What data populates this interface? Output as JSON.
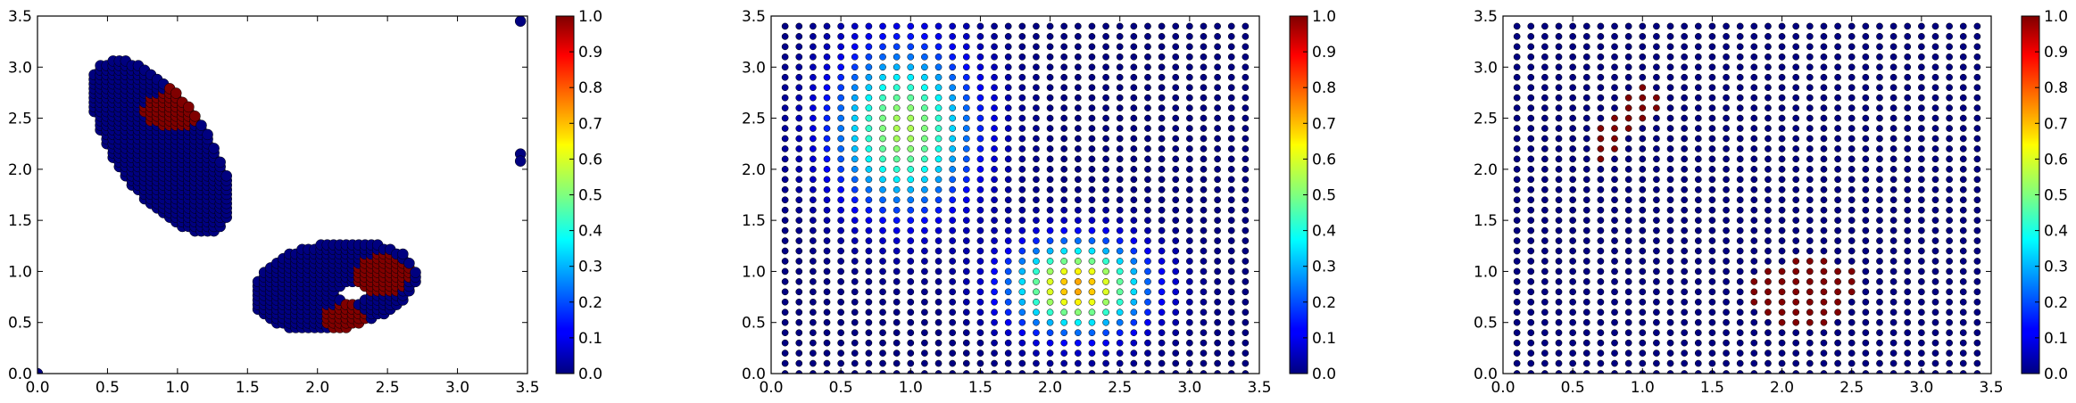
{
  "figure": {
    "colormap": "jet",
    "point_edge_color": "#000000"
  },
  "chart_data": [
    {
      "type": "scatter",
      "name": "panel-1",
      "xlim": [
        0.0,
        3.5
      ],
      "ylim": [
        0.0,
        3.5
      ],
      "xticks": [
        "0.0",
        "0.5",
        "1.0",
        "1.5",
        "2.0",
        "2.5",
        "3.0",
        "3.5"
      ],
      "yticks": [
        "0.0",
        "0.5",
        "1.0",
        "1.5",
        "2.0",
        "2.5",
        "3.0",
        "3.5"
      ],
      "colorbar": {
        "range": [
          0.0,
          1.0
        ],
        "ticks": [
          "0.0",
          "0.1",
          "0.2",
          "0.3",
          "0.4",
          "0.5",
          "0.6",
          "0.7",
          "0.8",
          "0.9",
          "1.0"
        ]
      },
      "grid": false,
      "description_of_points": "dense clusters: blob from (0.4,1.3) to (1.4,3.15) with red core near (1.05,2.6); ring-shaped blob from (1.5,0.35) to (2.7,1.35) with red patches near (2.45,0.95) and (2.2,0.55) and hole near (2.25,0.8); isolated points at (3.45,3.45), (3.45,2.12), (0,0)",
      "regions": [
        {
          "shape": "ellipse",
          "cx": 0.88,
          "cy": 2.22,
          "rx": 0.36,
          "ry": 0.92,
          "angle_deg": 24,
          "value": 0.0
        },
        {
          "shape": "ellipse",
          "cx": 1.05,
          "cy": 2.62,
          "rx": 0.3,
          "ry": 0.2,
          "angle_deg": 15,
          "value": 1.0
        },
        {
          "shape": "ellipse",
          "cx": 2.12,
          "cy": 0.86,
          "rx": 0.6,
          "ry": 0.42,
          "angle_deg": 18,
          "value": 0.0
        },
        {
          "shape": "ellipse",
          "cx": 2.47,
          "cy": 0.98,
          "rx": 0.2,
          "ry": 0.2,
          "angle_deg": 0,
          "value": 1.0
        },
        {
          "shape": "ellipse",
          "cx": 2.2,
          "cy": 0.55,
          "rx": 0.16,
          "ry": 0.14,
          "angle_deg": 0,
          "value": 1.0
        }
      ],
      "holes": [
        {
          "cx": 2.25,
          "cy": 0.8,
          "rx": 0.1,
          "ry": 0.1
        }
      ],
      "isolated_points": [
        {
          "x": 3.45,
          "y": 3.45,
          "value": 0.0
        },
        {
          "x": 3.45,
          "y": 2.15,
          "value": 0.0
        },
        {
          "x": 3.45,
          "y": 2.08,
          "value": 0.0
        },
        {
          "x": 0.0,
          "y": 0.0,
          "value": 0.0
        }
      ]
    },
    {
      "type": "scatter",
      "name": "panel-2",
      "xlim": [
        0.0,
        3.5
      ],
      "ylim": [
        0.0,
        3.5
      ],
      "xticks": [
        "0.0",
        "0.5",
        "1.0",
        "1.5",
        "2.0",
        "2.5",
        "3.0",
        "3.5"
      ],
      "yticks": [
        "0.0",
        "0.5",
        "1.0",
        "1.5",
        "2.0",
        "2.5",
        "3.0",
        "3.5"
      ],
      "colorbar": {
        "range": [
          0.0,
          1.0
        ],
        "ticks": [
          "0.0",
          "0.1",
          "0.2",
          "0.3",
          "0.4",
          "0.5",
          "0.6",
          "0.7",
          "0.8",
          "0.9",
          "1.0"
        ]
      },
      "grid": false,
      "grid_points": {
        "x_start": 0.1,
        "x_step": 0.1,
        "x_count": 34,
        "y_start": 0.0,
        "y_step": 0.1,
        "y_count": 35
      },
      "field": {
        "kind": "sum_of_gaussians",
        "components": [
          {
            "cx": 0.95,
            "cy": 2.4,
            "sx": 0.35,
            "sy": 0.55,
            "amp": 0.55
          },
          {
            "cx": 2.2,
            "cy": 0.85,
            "sx": 0.33,
            "sy": 0.3,
            "amp": 0.72
          }
        ]
      }
    },
    {
      "type": "scatter",
      "name": "panel-3",
      "xlim": [
        0.0,
        3.5
      ],
      "ylim": [
        0.0,
        3.5
      ],
      "xticks": [
        "0.0",
        "0.5",
        "1.0",
        "1.5",
        "2.0",
        "2.5",
        "3.0",
        "3.5"
      ],
      "yticks": [
        "0.0",
        "0.5",
        "1.0",
        "1.5",
        "2.0",
        "2.5",
        "3.0",
        "3.5"
      ],
      "colorbar": {
        "range": [
          0.0,
          1.0
        ],
        "ticks": [
          "0.0",
          "0.1",
          "0.2",
          "0.3",
          "0.4",
          "0.5",
          "0.6",
          "0.7",
          "0.8",
          "0.9",
          "1.0"
        ]
      },
      "grid": false,
      "grid_points": {
        "x_start": 0.1,
        "x_step": 0.1,
        "x_count": 34,
        "y_start": 0.0,
        "y_step": 0.1,
        "y_count": 35
      },
      "high_value_points": [
        [
          1.0,
          2.8
        ],
        [
          0.9,
          2.7
        ],
        [
          1.0,
          2.7
        ],
        [
          1.1,
          2.7
        ],
        [
          0.9,
          2.6
        ],
        [
          1.0,
          2.6
        ],
        [
          1.1,
          2.6
        ],
        [
          0.8,
          2.5
        ],
        [
          0.9,
          2.5
        ],
        [
          1.0,
          2.5
        ],
        [
          0.7,
          2.4
        ],
        [
          0.8,
          2.4
        ],
        [
          0.9,
          2.4
        ],
        [
          0.7,
          2.3
        ],
        [
          0.8,
          2.3
        ],
        [
          0.7,
          2.2
        ],
        [
          0.8,
          2.2
        ],
        [
          0.7,
          2.1
        ],
        [
          2.1,
          1.1
        ],
        [
          2.2,
          1.1
        ],
        [
          2.3,
          1.1
        ],
        [
          1.9,
          1.0
        ],
        [
          2.0,
          1.0
        ],
        [
          2.1,
          1.0
        ],
        [
          2.2,
          1.0
        ],
        [
          2.3,
          1.0
        ],
        [
          2.4,
          1.0
        ],
        [
          2.5,
          1.0
        ],
        [
          1.8,
          0.9
        ],
        [
          1.9,
          0.9
        ],
        [
          2.0,
          0.9
        ],
        [
          2.1,
          0.9
        ],
        [
          2.2,
          0.9
        ],
        [
          2.3,
          0.9
        ],
        [
          2.4,
          0.9
        ],
        [
          2.5,
          0.9
        ],
        [
          1.8,
          0.8
        ],
        [
          1.9,
          0.8
        ],
        [
          2.0,
          0.8
        ],
        [
          2.1,
          0.8
        ],
        [
          2.2,
          0.8
        ],
        [
          2.3,
          0.8
        ],
        [
          2.4,
          0.8
        ],
        [
          2.5,
          0.8
        ],
        [
          1.8,
          0.7
        ],
        [
          1.9,
          0.7
        ],
        [
          2.0,
          0.7
        ],
        [
          2.1,
          0.7
        ],
        [
          2.2,
          0.7
        ],
        [
          2.3,
          0.7
        ],
        [
          2.4,
          0.7
        ],
        [
          1.9,
          0.6
        ],
        [
          2.0,
          0.6
        ],
        [
          2.1,
          0.6
        ],
        [
          2.2,
          0.6
        ],
        [
          2.3,
          0.6
        ],
        [
          2.4,
          0.6
        ],
        [
          2.0,
          0.5
        ],
        [
          2.1,
          0.5
        ],
        [
          2.2,
          0.5
        ],
        [
          2.3,
          0.5
        ]
      ],
      "high_value": 1.0,
      "other_value": 0.0
    }
  ]
}
